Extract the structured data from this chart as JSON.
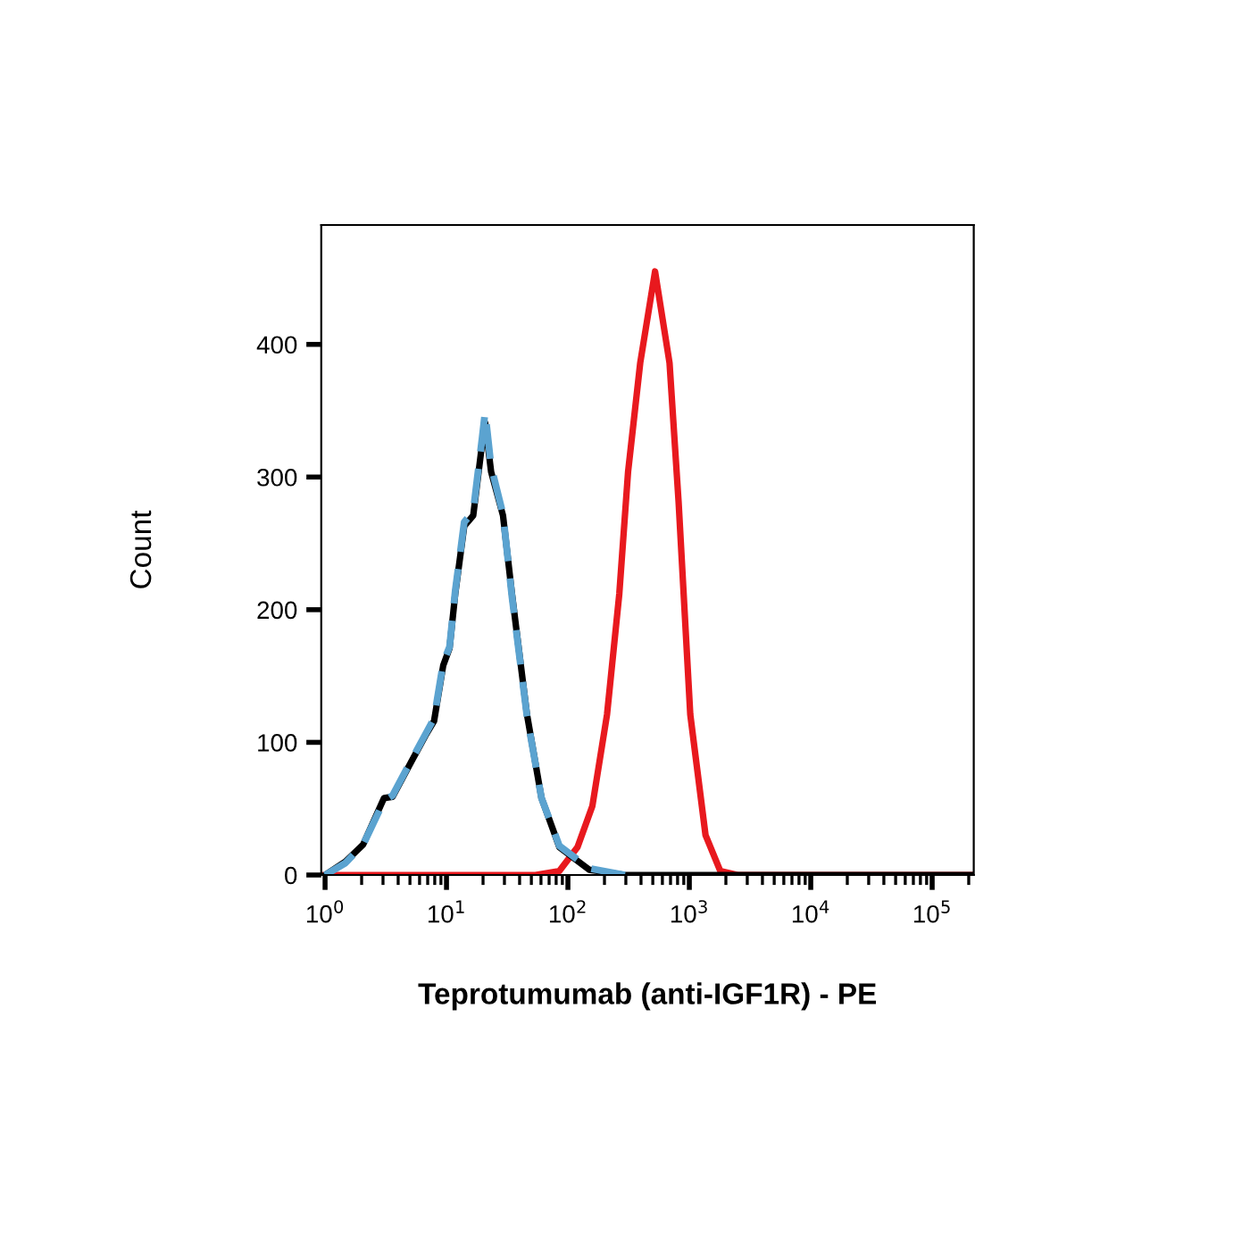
{
  "chart_data": {
    "type": "line",
    "xlabel": "Teprotumumab (anti-IGF1R) - PE",
    "ylabel": "Count",
    "log": "x",
    "xlim": [
      0.93,
      220000
    ],
    "ylim": [
      0,
      490
    ],
    "xticks": [
      {
        "value": 1,
        "label": "10$^{0}$"
      },
      {
        "value": 10,
        "label": "10$^{1}$"
      },
      {
        "value": 100,
        "label": "10$^{2}$"
      },
      {
        "value": 1000,
        "label": "10$^{3}$"
      },
      {
        "value": 10000,
        "label": "10$^{4}$"
      },
      {
        "value": 100000,
        "label": "10$^{5}$"
      }
    ],
    "yticks": [
      0,
      100,
      200,
      300,
      400
    ],
    "grid": false,
    "legend": false,
    "series": [
      {
        "color": "#e8191e",
        "line_style": "solid",
        "x": [
          0.93,
          54,
          85,
          120,
          159,
          210,
          265,
          313,
          394,
          522,
          687,
          816,
          1018,
          1360,
          1800,
          2500,
          220000
        ],
        "values": [
          0,
          0,
          3,
          21,
          52,
          121,
          212,
          304,
          386,
          455,
          386,
          281,
          121,
          30,
          3,
          0,
          0
        ]
      },
      {
        "color": "#000000",
        "line_style": "solid",
        "x": [
          1.0,
          1.47,
          2.06,
          3.06,
          3.6,
          5.1,
          6.7,
          7.9,
          9.4,
          10.6,
          11.8,
          14.0,
          16.6,
          19.7,
          20.8,
          23.3,
          29.2,
          34.6,
          46,
          60.6,
          85,
          150,
          295,
          220000
        ],
        "values": [
          0,
          10,
          23,
          58,
          59,
          85,
          105,
          116,
          158,
          171,
          212,
          263,
          271,
          326,
          341,
          304,
          271,
          212,
          121,
          58,
          21,
          4,
          0,
          0
        ]
      },
      {
        "color": "#5ba3d0",
        "line_style": "dashed",
        "x": [
          1.0,
          1.47,
          2.06,
          3.06,
          3.6,
          5.1,
          6.7,
          7.9,
          9.4,
          10.6,
          11.8,
          14.0,
          16.6,
          19.7,
          20.8,
          23.3,
          29.2,
          34.6,
          46,
          60.6,
          85,
          150,
          295
        ],
        "values": [
          0,
          9,
          23,
          56,
          60,
          86,
          106,
          118,
          160,
          172,
          214,
          266,
          274,
          330,
          349,
          308,
          272,
          210,
          120,
          58,
          22,
          5,
          0
        ]
      }
    ]
  }
}
